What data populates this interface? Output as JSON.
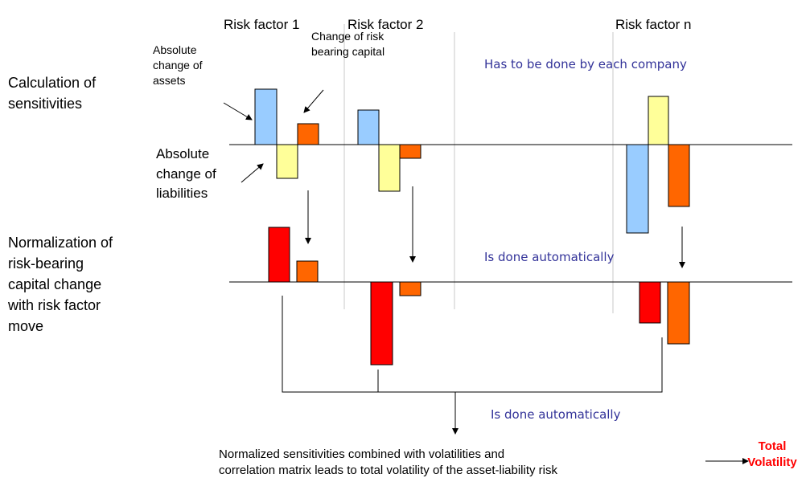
{
  "risk_factors": [
    "Risk factor 1",
    "Risk factor 2",
    "Risk factor n"
  ],
  "steps": {
    "sensitivities": [
      "Calculation of",
      "sensitivities"
    ],
    "normalization": [
      "Normalization of",
      "risk-bearing",
      "capital change",
      "with risk factor",
      "move"
    ]
  },
  "callouts": {
    "assets": [
      "Absolute",
      "change of",
      "assets"
    ],
    "capital": [
      "Change of risk",
      "bearing capital"
    ],
    "liabilities": [
      "Absolute",
      "change of",
      "liabilities"
    ]
  },
  "notes": [
    "Has to be done by each company",
    "Is done automatically",
    "Is done automatically"
  ],
  "footer": [
    "Normalized sensitivities combined with volatilities and",
    "correlation matrix leads to total volatility of the asset-liability risk"
  ],
  "result": [
    "Total",
    "Volatility"
  ]
}
